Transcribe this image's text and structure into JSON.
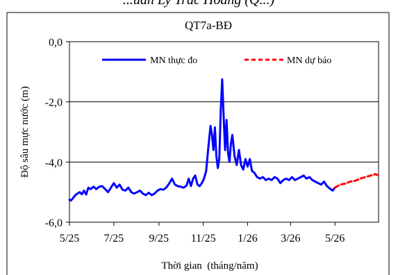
{
  "top_caption": "...uan Ly Trac Hoang (Q...)",
  "chart_data": {
    "type": "line",
    "title": "QT7a-BĐ",
    "xlabel": "Thời gian  (tháng/năm)",
    "ylabel": "Độ sâu mực nước (m)",
    "ylim": [
      -6.0,
      0.0
    ],
    "y_ticks": [
      0.0,
      -2.0,
      -4.0,
      -6.0
    ],
    "y_tick_labels": [
      "0,0",
      "-2,0",
      "-4,0",
      "-6,0"
    ],
    "x_range": [
      "2025-05-01",
      "2026-06-30"
    ],
    "x_ticks": [
      "2025-05-01",
      "2025-07-01",
      "2025-09-01",
      "2025-11-01",
      "2026-01-01",
      "2026-03-01",
      "2026-05-01"
    ],
    "x_tick_labels": [
      "5/25",
      "7/25",
      "9/25",
      "11/25",
      "1/26",
      "3/26",
      "5/26"
    ],
    "grid": "horizontal",
    "legend_position": "top",
    "series": [
      {
        "name": "MN thực đo",
        "color": "#0000ff",
        "style": "solid",
        "points": [
          [
            "2025-05-01",
            -5.25
          ],
          [
            "2025-05-03",
            -5.28
          ],
          [
            "2025-05-06",
            -5.2
          ],
          [
            "2025-05-09",
            -5.1
          ],
          [
            "2025-05-12",
            -5.05
          ],
          [
            "2025-05-15",
            -5.0
          ],
          [
            "2025-05-18",
            -5.07
          ],
          [
            "2025-05-21",
            -4.95
          ],
          [
            "2025-05-24",
            -5.08
          ],
          [
            "2025-05-27",
            -4.85
          ],
          [
            "2025-05-30",
            -4.9
          ],
          [
            "2025-06-03",
            -4.82
          ],
          [
            "2025-06-07",
            -4.9
          ],
          [
            "2025-06-11",
            -4.82
          ],
          [
            "2025-06-15",
            -4.8
          ],
          [
            "2025-06-19",
            -4.9
          ],
          [
            "2025-06-23",
            -5.0
          ],
          [
            "2025-06-27",
            -4.85
          ],
          [
            "2025-07-01",
            -4.7
          ],
          [
            "2025-07-05",
            -4.85
          ],
          [
            "2025-07-09",
            -4.75
          ],
          [
            "2025-07-13",
            -4.92
          ],
          [
            "2025-07-17",
            -4.95
          ],
          [
            "2025-07-21",
            -4.85
          ],
          [
            "2025-07-25",
            -5.0
          ],
          [
            "2025-07-29",
            -5.05
          ],
          [
            "2025-08-02",
            -5.0
          ],
          [
            "2025-08-06",
            -4.95
          ],
          [
            "2025-08-10",
            -5.05
          ],
          [
            "2025-08-14",
            -5.1
          ],
          [
            "2025-08-18",
            -5.02
          ],
          [
            "2025-08-22",
            -5.1
          ],
          [
            "2025-08-26",
            -5.05
          ],
          [
            "2025-08-30",
            -4.95
          ],
          [
            "2025-09-03",
            -4.9
          ],
          [
            "2025-09-07",
            -4.92
          ],
          [
            "2025-09-11",
            -4.85
          ],
          [
            "2025-09-15",
            -4.72
          ],
          [
            "2025-09-19",
            -4.55
          ],
          [
            "2025-09-23",
            -4.75
          ],
          [
            "2025-09-27",
            -4.8
          ],
          [
            "2025-10-01",
            -4.82
          ],
          [
            "2025-10-05",
            -4.85
          ],
          [
            "2025-10-09",
            -4.78
          ],
          [
            "2025-10-12",
            -4.55
          ],
          [
            "2025-10-15",
            -4.8
          ],
          [
            "2025-10-18",
            -4.55
          ],
          [
            "2025-10-21",
            -4.45
          ],
          [
            "2025-10-24",
            -4.75
          ],
          [
            "2025-10-27",
            -4.8
          ],
          [
            "2025-10-30",
            -4.7
          ],
          [
            "2025-11-02",
            -4.55
          ],
          [
            "2025-11-05",
            -4.3
          ],
          [
            "2025-11-08",
            -3.5
          ],
          [
            "2025-11-11",
            -2.8
          ],
          [
            "2025-11-13",
            -3.1
          ],
          [
            "2025-11-15",
            -3.6
          ],
          [
            "2025-11-17",
            -2.85
          ],
          [
            "2025-11-19",
            -3.8
          ],
          [
            "2025-11-21",
            -4.2
          ],
          [
            "2025-11-23",
            -3.9
          ],
          [
            "2025-11-25",
            -2.3
          ],
          [
            "2025-11-27",
            -1.25
          ],
          [
            "2025-11-29",
            -2.5
          ],
          [
            "2025-12-01",
            -3.6
          ],
          [
            "2025-12-03",
            -2.6
          ],
          [
            "2025-12-05",
            -3.7
          ],
          [
            "2025-12-07",
            -4.0
          ],
          [
            "2025-12-09",
            -3.4
          ],
          [
            "2025-12-11",
            -3.1
          ],
          [
            "2025-12-14",
            -3.8
          ],
          [
            "2025-12-17",
            -4.1
          ],
          [
            "2025-12-20",
            -3.6
          ],
          [
            "2025-12-23",
            -4.1
          ],
          [
            "2025-12-26",
            -4.25
          ],
          [
            "2025-12-29",
            -3.9
          ],
          [
            "2026-01-01",
            -4.15
          ],
          [
            "2026-01-04",
            -3.9
          ],
          [
            "2026-01-07",
            -4.3
          ],
          [
            "2026-01-10",
            -4.35
          ],
          [
            "2026-01-14",
            -4.5
          ],
          [
            "2026-01-18",
            -4.55
          ],
          [
            "2026-01-22",
            -4.5
          ],
          [
            "2026-01-26",
            -4.6
          ],
          [
            "2026-01-30",
            -4.55
          ],
          [
            "2026-02-03",
            -4.6
          ],
          [
            "2026-02-07",
            -4.5
          ],
          [
            "2026-02-11",
            -4.55
          ],
          [
            "2026-02-15",
            -4.7
          ],
          [
            "2026-02-19",
            -4.6
          ],
          [
            "2026-02-23",
            -4.55
          ],
          [
            "2026-02-27",
            -4.6
          ],
          [
            "2026-03-03",
            -4.5
          ],
          [
            "2026-03-07",
            -4.6
          ],
          [
            "2026-03-11",
            -4.55
          ],
          [
            "2026-03-15",
            -4.5
          ],
          [
            "2026-03-19",
            -4.45
          ],
          [
            "2026-03-23",
            -4.55
          ],
          [
            "2026-03-27",
            -4.5
          ],
          [
            "2026-03-31",
            -4.6
          ],
          [
            "2026-04-04",
            -4.65
          ],
          [
            "2026-04-08",
            -4.7
          ],
          [
            "2026-04-12",
            -4.75
          ],
          [
            "2026-04-16",
            -4.65
          ],
          [
            "2026-04-20",
            -4.8
          ],
          [
            "2026-04-24",
            -4.88
          ],
          [
            "2026-04-28",
            -4.95
          ],
          [
            "2026-05-01",
            -4.85
          ]
        ]
      },
      {
        "name": "MN dự báo",
        "color": "#ff0000",
        "style": "dashed",
        "points": [
          [
            "2026-05-01",
            -4.85
          ],
          [
            "2026-05-08",
            -4.75
          ],
          [
            "2026-05-15",
            -4.72
          ],
          [
            "2026-05-22",
            -4.65
          ],
          [
            "2026-05-29",
            -4.62
          ],
          [
            "2026-06-05",
            -4.55
          ],
          [
            "2026-06-12",
            -4.5
          ],
          [
            "2026-06-19",
            -4.45
          ],
          [
            "2026-06-26",
            -4.4
          ],
          [
            "2026-06-30",
            -4.45
          ]
        ]
      }
    ]
  }
}
